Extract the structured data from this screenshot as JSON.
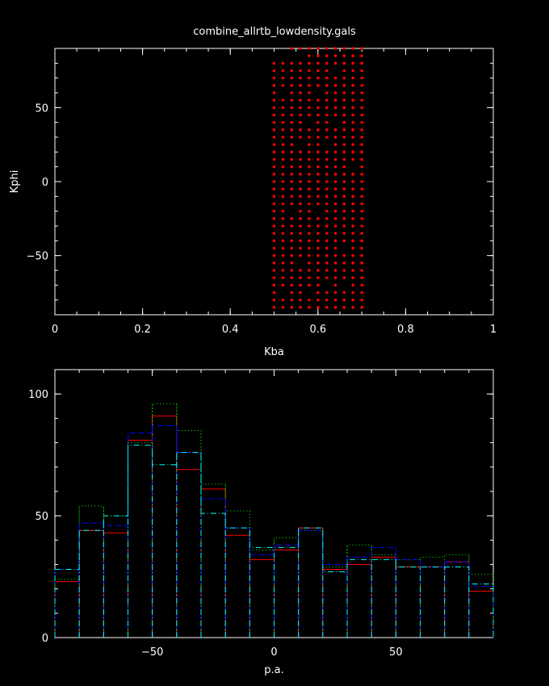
{
  "title": "combine_allrtb_lowdensity.gals",
  "colors": {
    "background": "#000000",
    "axes": "#ffffff",
    "red": "#ff0000",
    "green": "#00ff00",
    "blue": "#0000ff",
    "cyan": "#00ffff"
  },
  "chart_data": [
    {
      "type": "scatter",
      "title": "combine_allrtb_lowdensity.gals",
      "xlabel": "Kba",
      "ylabel": "Kphi",
      "xlim": [
        0,
        1
      ],
      "ylim": [
        -90,
        90
      ],
      "xticks": [
        0,
        0.2,
        0.4,
        0.6,
        0.8,
        1
      ],
      "xtick_labels": [
        "0",
        "0.2",
        "0.4",
        "0.6",
        "0.8",
        "1"
      ],
      "yticks": [
        -50,
        0,
        50
      ],
      "ytick_labels": [
        "−50",
        "0",
        "50"
      ],
      "marker_color": "#ff0000",
      "x_grid": [
        0.5,
        0.52,
        0.54,
        0.56,
        0.58,
        0.6,
        0.62,
        0.64,
        0.66,
        0.68,
        0.7
      ],
      "y_grid": [
        -85,
        -80,
        -75,
        -70,
        -65,
        -60,
        -55,
        -50,
        -45,
        -40,
        -35,
        -30,
        -25,
        -20,
        -15,
        -10,
        -5,
        0,
        5,
        10,
        15,
        20,
        25,
        30,
        35,
        40,
        45,
        50,
        55,
        60,
        65,
        70,
        75,
        80,
        85,
        90
      ],
      "missing_points": [
        [
          0.5,
          90
        ],
        [
          0.52,
          90
        ],
        [
          0.5,
          85
        ],
        [
          0.52,
          85
        ],
        [
          0.54,
          85
        ],
        [
          0.56,
          85
        ],
        [
          0.52,
          -75
        ],
        [
          0.58,
          -75
        ],
        [
          0.62,
          -70
        ],
        [
          0.66,
          -70
        ],
        [
          0.54,
          -20
        ],
        [
          0.6,
          -20
        ],
        [
          0.56,
          25
        ],
        [
          0.62,
          25
        ],
        [
          0.58,
          40
        ],
        [
          0.64,
          40
        ],
        [
          0.6,
          60
        ],
        [
          0.52,
          60
        ],
        [
          0.68,
          10
        ],
        [
          0.66,
          -45
        ],
        [
          0.56,
          -55
        ],
        [
          0.64,
          75
        ]
      ]
    },
    {
      "type": "histogram",
      "xlabel": "p.a.",
      "ylabel": "",
      "xlim": [
        -90,
        90
      ],
      "ylim": [
        0,
        110
      ],
      "xticks": [
        -50,
        0,
        50
      ],
      "xtick_labels": [
        "−50",
        "0",
        "50"
      ],
      "yticks": [
        0,
        50,
        100
      ],
      "ytick_labels": [
        "0",
        "50",
        "100"
      ],
      "bin_edges": [
        -90,
        -80,
        -70,
        -60,
        -50,
        -40,
        -30,
        -20,
        -10,
        0,
        10,
        20,
        30,
        40,
        50,
        60,
        70,
        80,
        90
      ],
      "series": [
        {
          "color": "#ff0000",
          "style": "solid",
          "values": [
            23,
            44,
            43,
            81,
            91,
            69,
            61,
            42,
            32,
            36,
            45,
            28,
            30,
            33,
            29,
            29,
            31,
            19
          ]
        },
        {
          "color": "#00ff00",
          "style": "dotted",
          "values": [
            24,
            54,
            50,
            80,
            96,
            85,
            63,
            52,
            36,
            41,
            44,
            29,
            38,
            34,
            32,
            33,
            34,
            26
          ]
        },
        {
          "color": "#0000ff",
          "style": "dashed",
          "values": [
            28,
            47,
            46,
            84,
            87,
            76,
            57,
            45,
            34,
            38,
            44,
            30,
            33,
            37,
            32,
            29,
            31,
            21
          ]
        },
        {
          "color": "#00ffff",
          "style": "dashdot",
          "values": [
            28,
            44,
            50,
            79,
            71,
            76,
            51,
            45,
            37,
            37,
            45,
            27,
            32,
            32,
            29,
            29,
            29,
            22
          ]
        }
      ]
    }
  ]
}
